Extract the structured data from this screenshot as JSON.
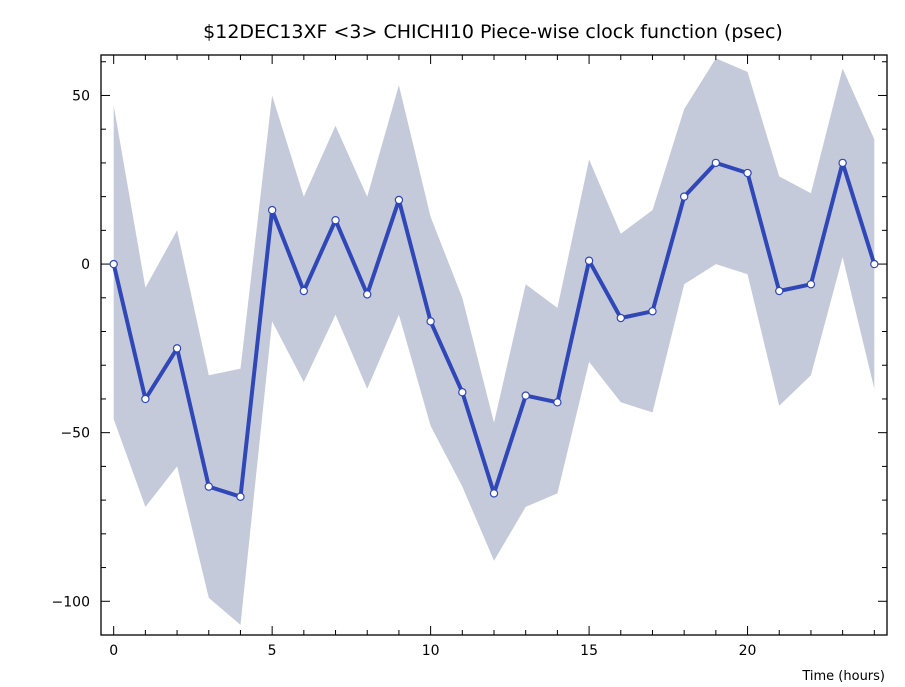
{
  "chart_data": {
    "type": "line",
    "title": "$12DEC13XF <3>  CHICHI10  Piece-wise clock function (psec)",
    "xlabel": "Time (hours)",
    "ylabel": "",
    "xlim": [
      -0.4,
      24.4
    ],
    "ylim": [
      -110,
      62
    ],
    "x_ticks": [
      0,
      5,
      10,
      15,
      20
    ],
    "y_ticks": [
      50,
      0,
      -50,
      -100
    ],
    "x_tick_labels": [
      "0",
      "5",
      "10",
      "15",
      "20"
    ],
    "y_tick_labels": [
      "50",
      "0",
      "−50",
      "−100"
    ],
    "grid": false,
    "x": [
      0,
      1,
      2,
      3,
      4,
      5,
      6,
      7,
      8,
      9,
      10,
      11,
      12,
      13,
      14,
      15,
      16,
      17,
      18,
      19,
      20,
      21,
      22,
      23,
      24
    ],
    "series": [
      {
        "values": [
          0,
          -40,
          -25,
          -66,
          -69,
          16,
          -8,
          13,
          -9,
          19,
          -17,
          -38,
          -68,
          -39,
          -41,
          1,
          -16,
          -14,
          20,
          30,
          27,
          -8,
          -6,
          30,
          0
        ],
        "upper": [
          47,
          -7,
          10,
          -33,
          -31,
          50,
          20,
          41,
          20,
          53,
          14,
          -10,
          -47,
          -6,
          -13,
          31,
          9,
          16,
          46,
          61,
          57,
          26,
          21,
          58,
          37
        ],
        "lower": [
          -46,
          -72,
          -60,
          -99,
          -107,
          -17,
          -35,
          -15,
          -37,
          -15,
          -48,
          -66,
          -88,
          -72,
          -68,
          -29,
          -41,
          -44,
          -6,
          0,
          -3,
          -42,
          -33,
          2,
          -37
        ]
      }
    ],
    "colors": {
      "line": "#3047b8",
      "band": "#c5cadb",
      "marker_fill": "#ffffff",
      "axis": "#000000"
    }
  }
}
